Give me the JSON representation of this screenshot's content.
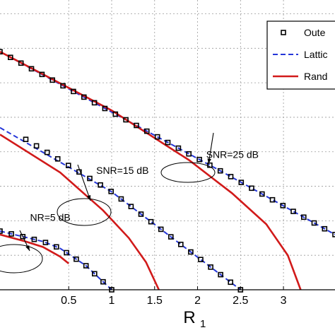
{
  "chart_data": {
    "type": "line",
    "xlabel": "R",
    "xlabel_subscript": "1",
    "ylabel": "",
    "xlim": [
      -0.3,
      3.6
    ],
    "ylim": [
      0,
      4.2
    ],
    "xticks": [
      0.5,
      1,
      1.5,
      2,
      2.5,
      3
    ],
    "xtick_labels": [
      "0.5",
      "1",
      "1.5",
      "2",
      "2.5",
      "3"
    ],
    "grid": true,
    "legend_position": "top-right",
    "legend": [
      {
        "label": "Oute",
        "style": "marker"
      },
      {
        "label": "Lattic",
        "style": "dashed"
      },
      {
        "label": "Rand",
        "style": "solid"
      }
    ],
    "series": [
      {
        "name": "Oute",
        "group": "SNR=25 dB",
        "style": "marker",
        "x": [
          -0.3,
          2.3,
          3.6
        ],
        "y": [
          3.45,
          1.7,
          0.8
        ]
      },
      {
        "name": "Lattic",
        "group": "SNR=25 dB",
        "style": "dashed",
        "x": [
          -0.3,
          2.3,
          3.6
        ],
        "y": [
          3.45,
          1.7,
          0.8
        ]
      },
      {
        "name": "Rand",
        "group": "SNR=25 dB",
        "style": "solid",
        "x": [
          -0.3,
          1.0,
          1.9,
          2.4,
          2.8,
          3.05,
          3.2
        ],
        "y": [
          3.45,
          2.6,
          1.88,
          1.4,
          0.95,
          0.5,
          0.0
        ]
      },
      {
        "name": "Oute",
        "group": "SNR=15 dB",
        "style": "marker",
        "x": [
          0.0,
          1.0,
          2.5
        ],
        "y": [
          2.18,
          1.42,
          0.0
        ]
      },
      {
        "name": "Lattic",
        "group": "SNR=15 dB",
        "style": "dashed",
        "x": [
          -0.3,
          1.0,
          2.5
        ],
        "y": [
          2.35,
          1.42,
          0.0
        ]
      },
      {
        "name": "Rand",
        "group": "SNR=15 dB",
        "style": "solid",
        "x": [
          -0.3,
          0.4,
          0.9,
          1.2,
          1.4,
          1.55
        ],
        "y": [
          2.25,
          1.7,
          1.15,
          0.75,
          0.4,
          0.0
        ]
      },
      {
        "name": "Oute",
        "group": "SNR=5 dB",
        "style": "marker",
        "x": [
          -0.3,
          0.2,
          0.4,
          0.7,
          1.0
        ],
        "y": [
          0.85,
          0.7,
          0.6,
          0.35,
          0.0
        ]
      },
      {
        "name": "Lattic",
        "group": "SNR=5 dB",
        "style": "dashed",
        "x": [
          -0.3,
          0.2,
          0.4,
          0.7,
          1.0
        ],
        "y": [
          0.85,
          0.7,
          0.6,
          0.35,
          0.0
        ]
      },
      {
        "name": "Rand",
        "group": "SNR=5 dB",
        "style": "solid",
        "x": [
          -0.3,
          0.0,
          0.2,
          0.4,
          0.5
        ],
        "y": [
          0.8,
          0.7,
          0.62,
          0.48,
          0.38
        ]
      }
    ],
    "annotations": [
      {
        "text": "SNR=25 dB",
        "x": 2.1,
        "y": 1.91
      },
      {
        "text": "SNR=15 dB",
        "x": 0.82,
        "y": 1.68
      },
      {
        "text": "NR=5 dB",
        "x": 0.05,
        "y": 1.0
      }
    ],
    "colors": {
      "outer_marker": "#000000",
      "lattice": "#2536d8",
      "random": "#d11a1a",
      "grid": "#9a9a9a"
    }
  }
}
